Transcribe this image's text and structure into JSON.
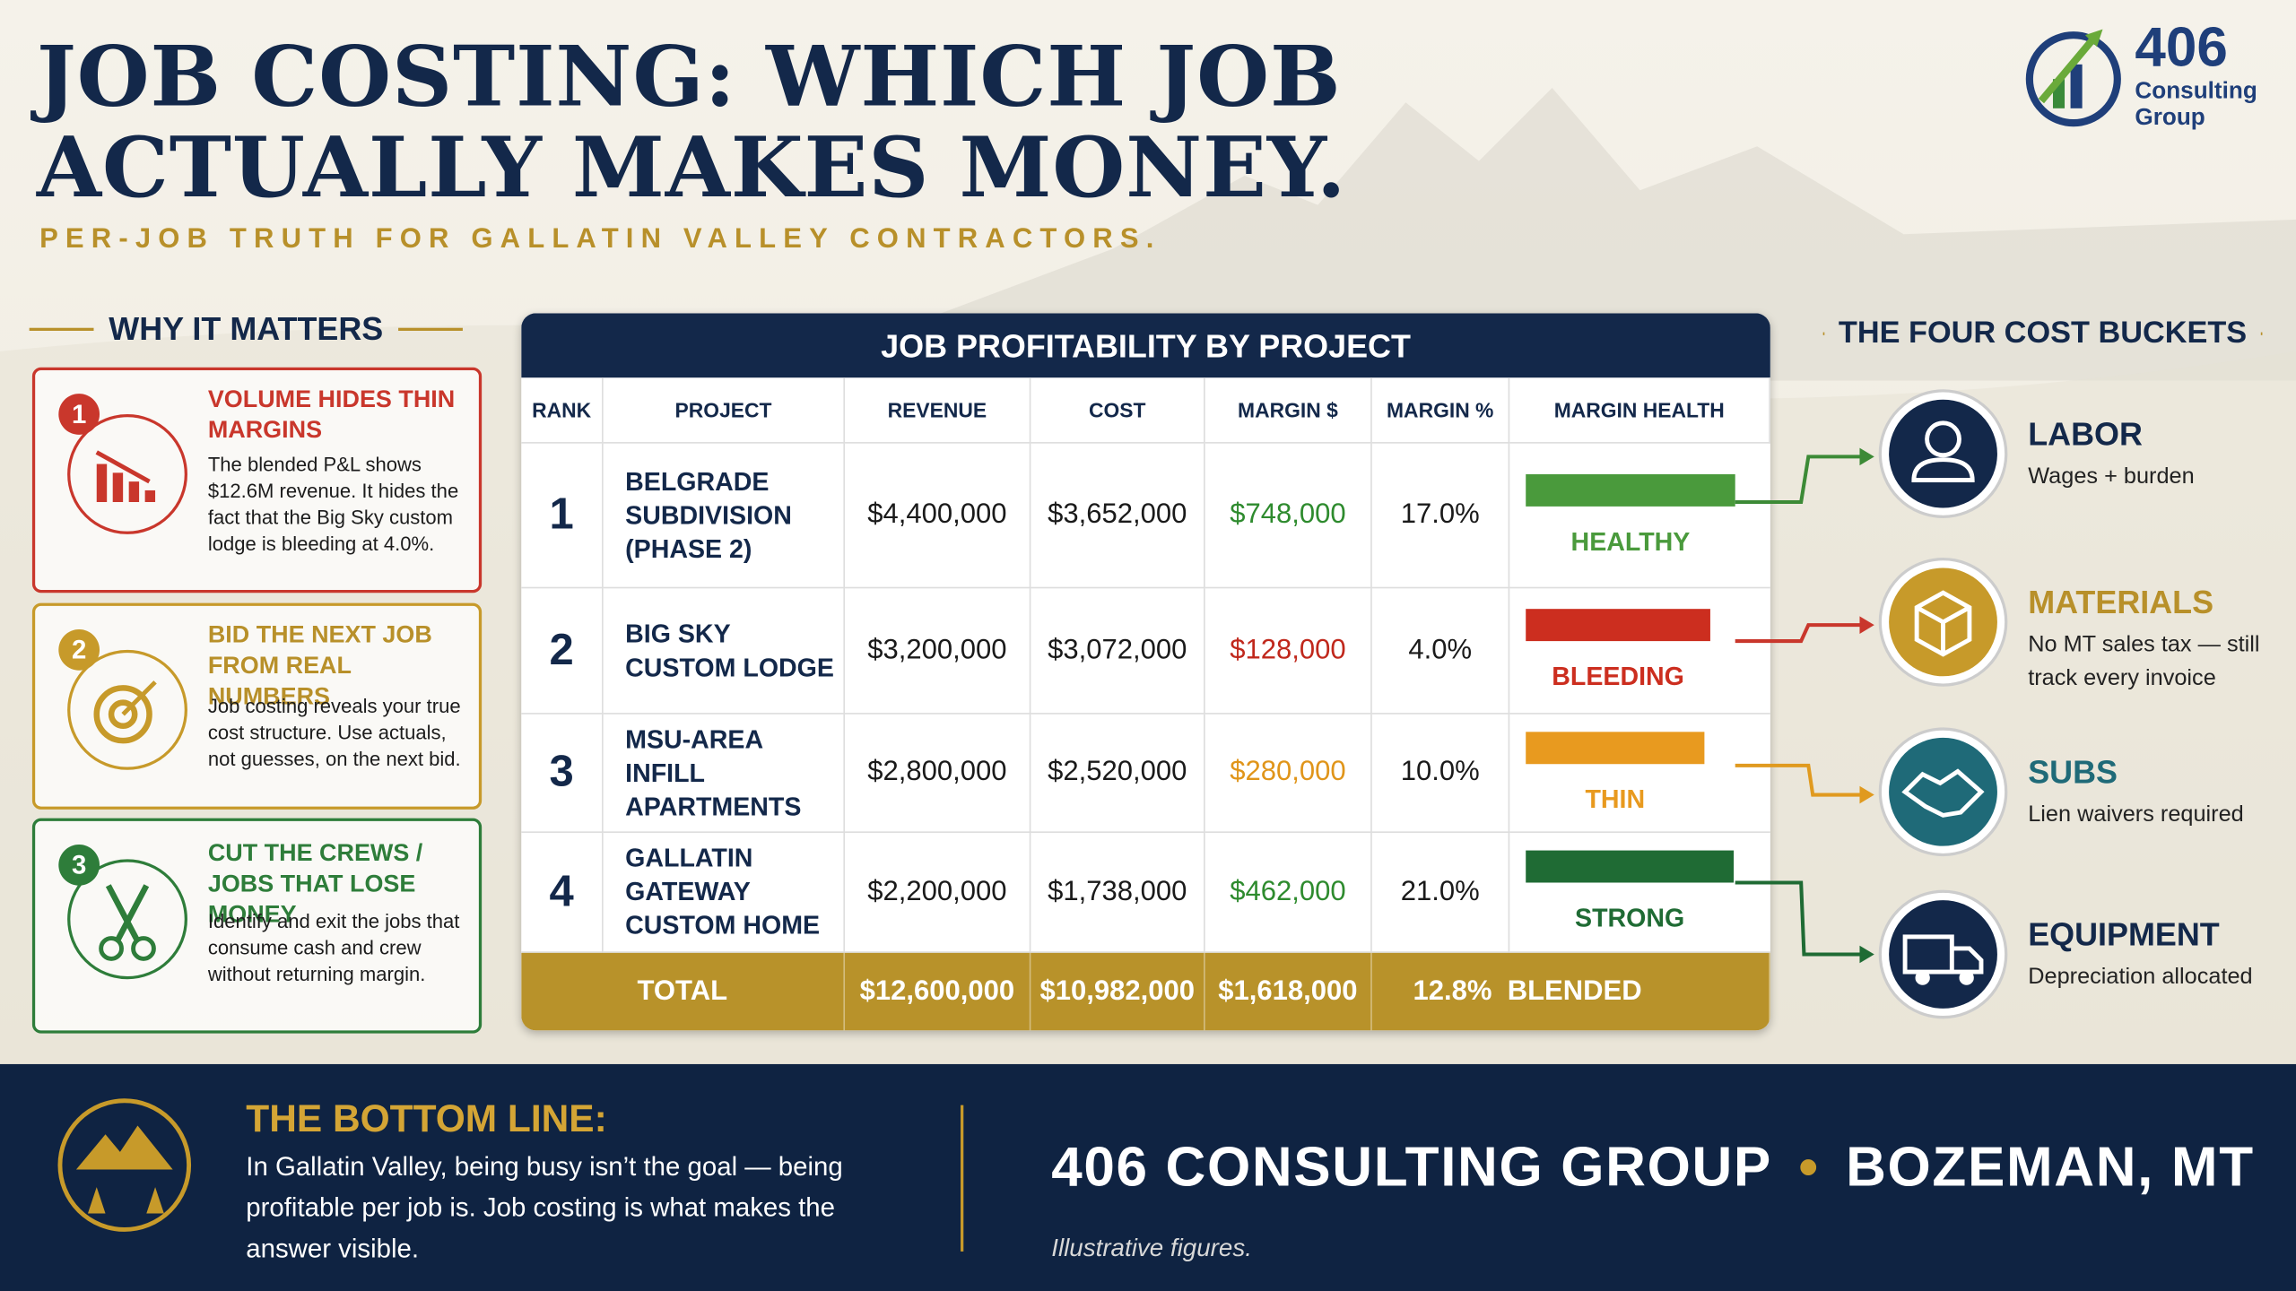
{
  "header": {
    "title_lines": [
      "JOB COSTING: WHICH JOB",
      "ACTUALLY MAKES MONEY."
    ],
    "subtitle": "PER-JOB TRUTH FOR GALLATIN VALLEY CONTRACTORS."
  },
  "logo": {
    "number": "406",
    "name_lines": [
      "Consulting",
      "Group"
    ]
  },
  "why": {
    "heading": "WHY IT MATTERS",
    "items": [
      {
        "number": "1",
        "title": "VOLUME HIDES THIN MARGINS",
        "text": "The blended P&L shows $12.6M revenue. It hides the fact that the Big Sky custom lodge is bleeding at 4.0%."
      },
      {
        "number": "2",
        "title": "BID THE NEXT JOB FROM REAL NUMBERS",
        "text": "Job costing reveals your true cost structure. Use actuals, not guesses, on the next bid."
      },
      {
        "number": "3",
        "title": "CUT THE CREWS / JOBS THAT LOSE MONEY",
        "text": "Identify and exit the jobs that consume cash and crew without returning margin."
      }
    ]
  },
  "table": {
    "title": "JOB PROFITABILITY BY PROJECT",
    "columns": [
      "RANK",
      "PROJECT",
      "REVENUE",
      "COST",
      "MARGIN $",
      "MARGIN %",
      "MARGIN HEALTH"
    ],
    "rows": [
      [
        "1",
        "BELGRADE SUBDIVISION (PHASE 2)",
        "$4,400,000",
        "$3,652,000",
        "$748,000",
        "17.0%",
        "HEALTHY"
      ],
      [
        "2",
        "BIG SKY CUSTOM LODGE",
        "$3,200,000",
        "$3,072,000",
        "$128,000",
        "4.0%",
        "BLEEDING"
      ],
      [
        "3",
        "MSU-AREA INFILL APARTMENTS",
        "$2,800,000",
        "$2,520,000",
        "$280,000",
        "10.0%",
        "THIN"
      ],
      [
        "4",
        "GALLATIN GATEWAY CUSTOM HOME",
        "$2,200,000",
        "$1,738,000",
        "$462,000",
        "21.0%",
        "STRONG"
      ]
    ],
    "total": [
      "TOTAL",
      "$12,600,000",
      "$10,982,000",
      "$1,618,000",
      "12.8%  BLENDED"
    ]
  },
  "buckets": {
    "heading": "THE FOUR COST BUCKETS",
    "items": [
      {
        "name": "LABOR",
        "text": "Wages + burden"
      },
      {
        "name": "MATERIALS",
        "text": "No MT sales tax — still track every invoice"
      },
      {
        "name": "SUBS",
        "text": "Lien waivers required"
      },
      {
        "name": "EQUIPMENT",
        "text": "Depreciation allocated"
      }
    ]
  },
  "footer": {
    "heading": "THE BOTTOM LINE:",
    "text": "In Gallatin Valley, being busy isn’t the goal — being profitable per job is. Job costing is what makes the answer visible.",
    "brand": "406 CONSULTING GROUP",
    "location": "BOZEMAN, MT",
    "note": "Illustrative figures."
  }
}
